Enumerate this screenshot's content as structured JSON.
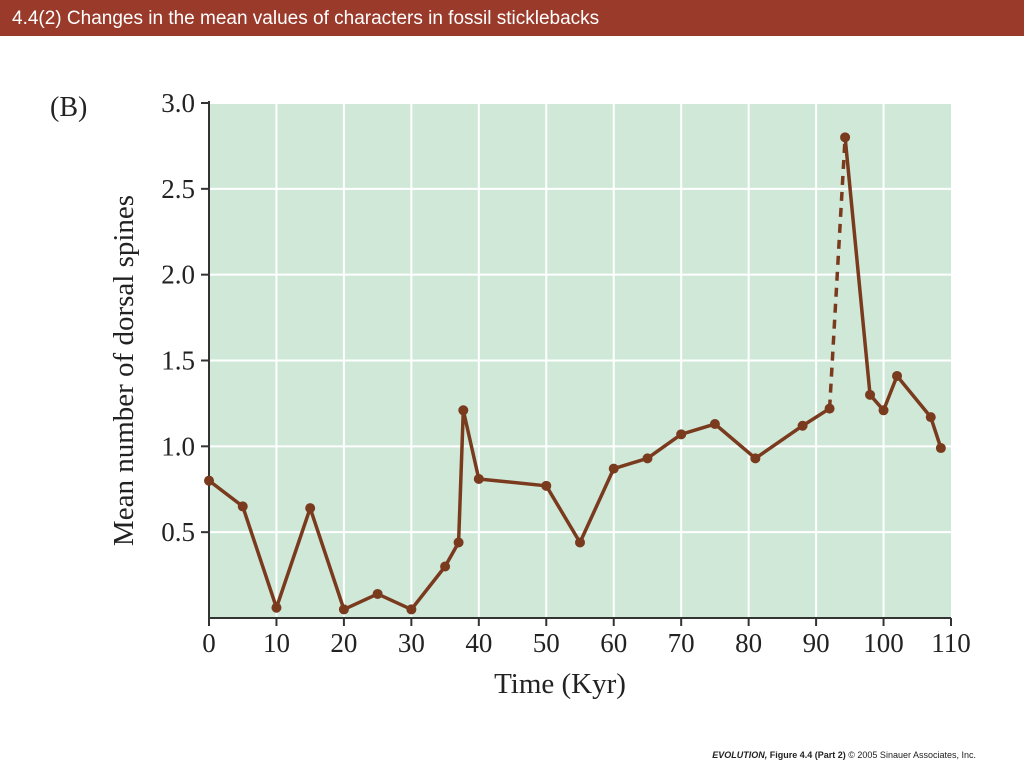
{
  "slide": {
    "title": "4.4(2)  Changes in the mean values of characters in fossil sticklebacks",
    "credit_title": "EVOLUTION,",
    "credit_rest": "Figure 4.4 (Part 2)",
    "credit_copy": "© 2005 Sinauer Associates, Inc."
  },
  "chart_data": {
    "type": "line",
    "panel_label": "(B)",
    "xlabel": "Time (Kyr)",
    "ylabel": "Mean number of dorsal spines",
    "xlim": [
      0,
      110
    ],
    "ylim": [
      0,
      3.0
    ],
    "xticks": [
      0,
      10,
      20,
      30,
      40,
      50,
      60,
      70,
      80,
      90,
      100,
      110
    ],
    "yticks": [
      0.5,
      1.0,
      1.5,
      2.0,
      2.5,
      3.0
    ],
    "ytick_labels": [
      "0.5",
      "1.0",
      "1.5",
      "2.0",
      "2.5",
      "3.0"
    ],
    "grid": true,
    "colors": {
      "plot_bg": "#cfe8d8",
      "line": "#7a3a1e",
      "title_bar": "#9a3a2a"
    },
    "series": [
      {
        "x": [
          0,
          5,
          10,
          15,
          20,
          25,
          30,
          35,
          37,
          37.7,
          40,
          50,
          55,
          60,
          65,
          70,
          75,
          81,
          88,
          92,
          94.3,
          98,
          100,
          102,
          107,
          108.5
        ],
        "y": [
          0.8,
          0.65,
          0.06,
          0.64,
          0.05,
          0.14,
          0.05,
          0.3,
          0.44,
          1.21,
          0.81,
          0.77,
          0.44,
          0.87,
          0.93,
          1.07,
          1.13,
          0.93,
          1.12,
          1.22,
          2.8,
          1.3,
          1.21,
          1.41,
          1.17,
          0.99
        ],
        "dashed_segments": [
          [
            92,
            94.3
          ]
        ]
      }
    ]
  }
}
